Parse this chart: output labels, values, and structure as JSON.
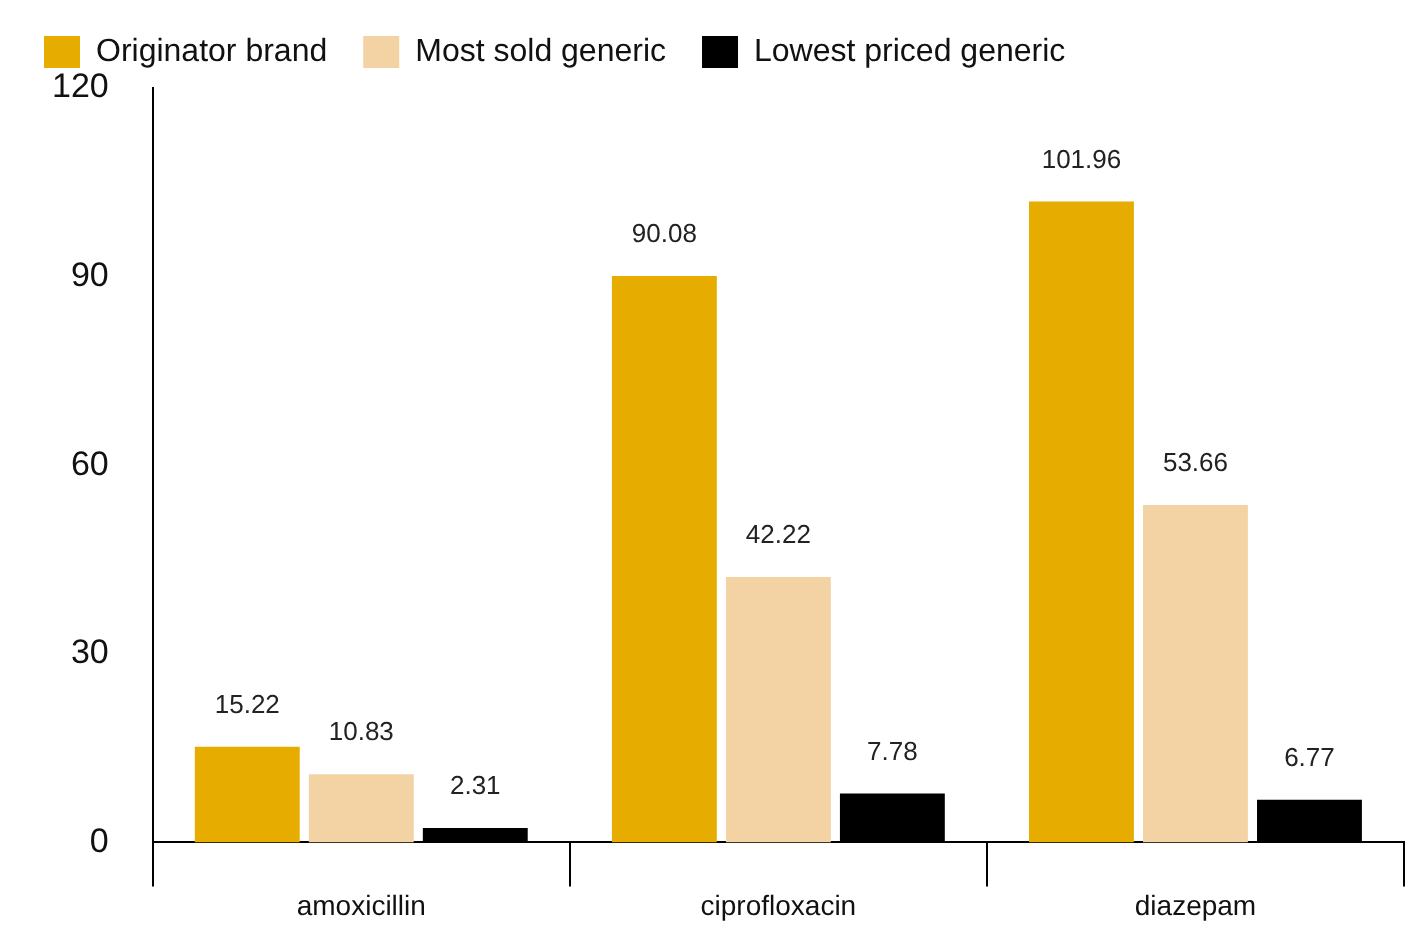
{
  "chart_data": {
    "type": "bar",
    "categories": [
      "amoxicillin",
      "ciprofloxacin",
      "diazepam"
    ],
    "series": [
      {
        "name": "Originator brand",
        "color": "#e6ac00",
        "values": [
          15.22,
          90.08,
          101.96
        ]
      },
      {
        "name": "Most sold generic",
        "color": "#f3d3a3",
        "values": [
          10.83,
          42.22,
          53.66
        ]
      },
      {
        "name": "Lowest priced generic",
        "color": "#000000",
        "values": [
          2.31,
          7.78,
          6.77
        ]
      }
    ],
    "ylim": [
      0,
      120
    ],
    "yticks": [
      0,
      30,
      60,
      90,
      120
    ],
    "grid": false,
    "legend": "top left",
    "data_labels": true
  }
}
